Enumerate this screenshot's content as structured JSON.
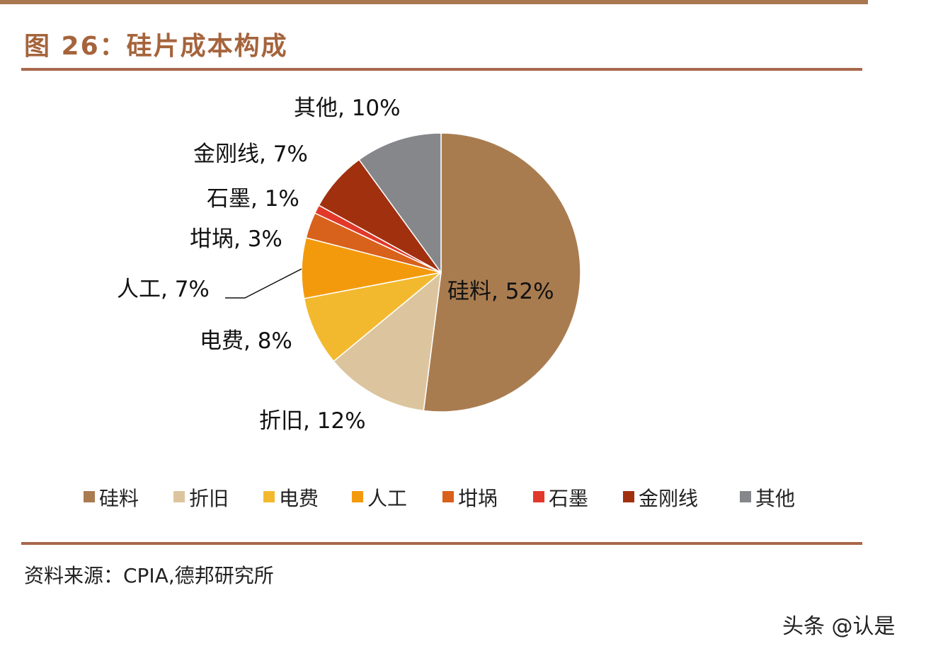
{
  "title": "图 26：硅片成本构成",
  "source": "资料来源：CPIA,德邦研究所",
  "watermark": "头条 @认是",
  "chart_data": {
    "type": "pie",
    "title": "",
    "start": "12 o'clock, clockwise",
    "legend_position": "bottom",
    "slices": [
      {
        "name": "硅料",
        "value": 52,
        "label": "硅料, 52%",
        "color": "#a97c50"
      },
      {
        "name": "折旧",
        "value": 12,
        "label": "折旧, 12%",
        "color": "#dcc59e"
      },
      {
        "name": "电费",
        "value": 8,
        "label": "电费, 8%",
        "color": "#f3b92e"
      },
      {
        "name": "人工",
        "value": 7,
        "label": "人工, 7%",
        "color": "#f39a0c"
      },
      {
        "name": "坩埚",
        "value": 3,
        "label": "坩埚, 3%",
        "color": "#d8611b"
      },
      {
        "name": "石墨",
        "value": 1,
        "label": "石墨, 1%",
        "color": "#e2382a"
      },
      {
        "name": "金刚线",
        "value": 7,
        "label": "金刚线, 7%",
        "color": "#a1300f"
      },
      {
        "name": "其他",
        "value": 10,
        "label": "其他, 10%",
        "color": "#85878b"
      }
    ]
  }
}
